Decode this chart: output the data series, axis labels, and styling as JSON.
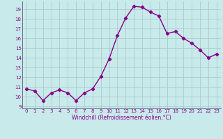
{
  "x": [
    0,
    1,
    2,
    3,
    4,
    5,
    6,
    7,
    8,
    9,
    10,
    11,
    12,
    13,
    14,
    15,
    16,
    17,
    18,
    19,
    20,
    21,
    22,
    23
  ],
  "y": [
    10.8,
    10.6,
    9.6,
    10.4,
    10.7,
    10.4,
    9.6,
    10.4,
    10.8,
    12.1,
    13.9,
    16.3,
    18.1,
    19.3,
    19.2,
    18.7,
    18.3,
    16.5,
    16.7,
    16.0,
    15.5,
    14.8,
    14.0,
    14.4
  ],
  "line_color": "#880088",
  "marker": "D",
  "marker_size": 2.2,
  "bg_color": "#c8eaea",
  "grid_color": "#aacccc",
  "xlabel": "Windchill (Refroidissement éolien,°C)",
  "xlabel_color": "#880088",
  "tick_color": "#880088",
  "ylim": [
    8.8,
    19.8
  ],
  "xlim": [
    -0.5,
    23.5
  ],
  "yticks": [
    9,
    10,
    11,
    12,
    13,
    14,
    15,
    16,
    17,
    18,
    19
  ],
  "xticks": [
    0,
    1,
    2,
    3,
    4,
    5,
    6,
    7,
    8,
    9,
    10,
    11,
    12,
    13,
    14,
    15,
    16,
    17,
    18,
    19,
    20,
    21,
    22,
    23
  ],
  "line_width": 1.0
}
